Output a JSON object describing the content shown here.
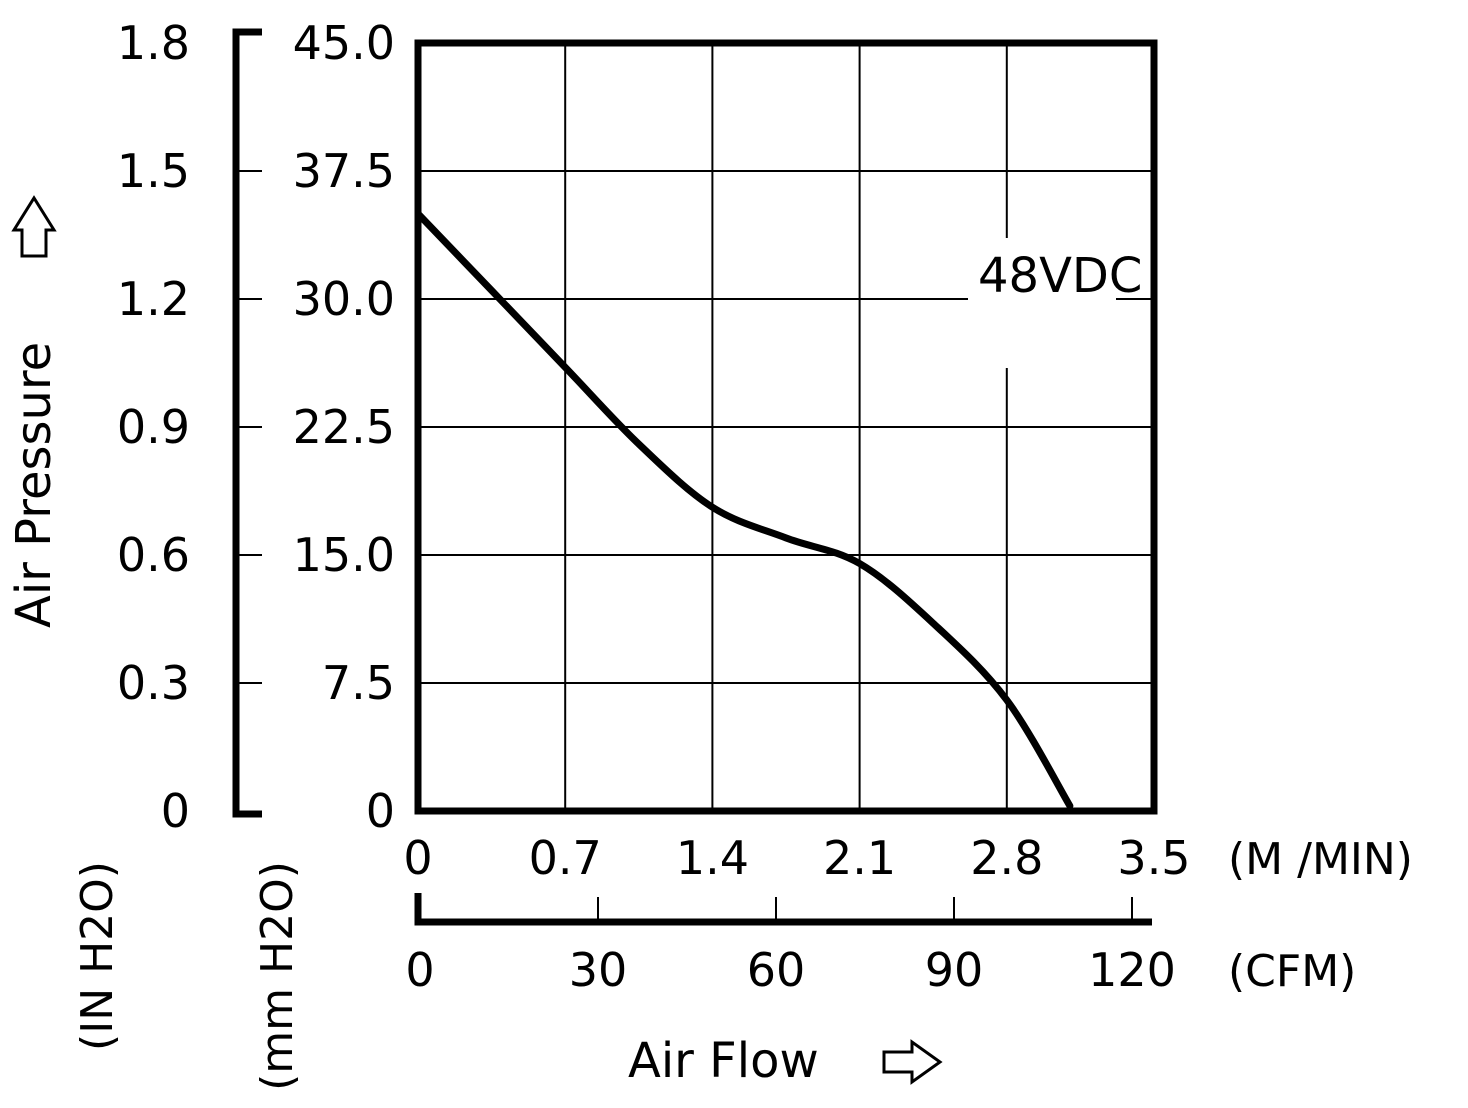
{
  "chart_data": {
    "type": "line",
    "title": "",
    "series": [
      {
        "name": "48VDC",
        "points": [
          [
            0,
            35.0
          ],
          [
            0.35,
            30.5
          ],
          [
            0.7,
            26.0
          ],
          [
            1.05,
            21.5
          ],
          [
            1.4,
            17.8
          ],
          [
            1.75,
            16.0
          ],
          [
            2.1,
            14.5
          ],
          [
            2.45,
            11.0
          ],
          [
            2.8,
            6.5
          ],
          [
            3.1,
            0.3
          ]
        ]
      }
    ],
    "x_axis": {
      "label": "Air Flow",
      "primary": {
        "unit": "(M /MIN)",
        "ticks": [
          "0",
          "0.7",
          "1.4",
          "2.1",
          "2.8",
          "3.5"
        ],
        "range": [
          0,
          3.5
        ]
      },
      "secondary": {
        "unit": "(CFM)",
        "ticks": [
          "0",
          "30",
          "60",
          "90",
          "120"
        ],
        "range": [
          0,
          120
        ]
      }
    },
    "y_axis": {
      "label": "Air Pressure",
      "primary": {
        "unit": "(mm H2O)",
        "ticks": [
          "0",
          "7.5",
          "15.0",
          "22.5",
          "30.0",
          "37.5",
          "45.0"
        ],
        "range": [
          0,
          45
        ]
      },
      "secondary": {
        "unit": "(IN H2O)",
        "ticks": [
          "0",
          "0.3",
          "0.6",
          "0.9",
          "1.2",
          "1.5",
          "1.8"
        ],
        "range": [
          0,
          1.8
        ]
      }
    },
    "grid": true,
    "legend": "inside-top-right label"
  }
}
